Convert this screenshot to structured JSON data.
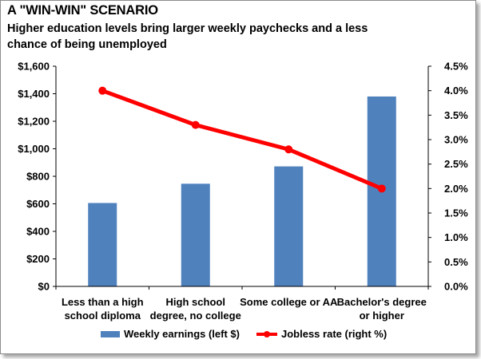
{
  "chart_data": {
    "type": "bar+line",
    "title": "A \"WIN-WIN\" SCENARIO",
    "subtitle": "Higher education levels bring larger weekly paychecks and a less chance of being unemployed",
    "categories": [
      [
        "Less than a high",
        "school diploma"
      ],
      [
        "High school",
        "degree, no college"
      ],
      [
        "Some college or AA"
      ],
      [
        "Bachelor's degree",
        "or higher"
      ]
    ],
    "series": [
      {
        "name": "Weekly earnings (left $)",
        "type": "bar",
        "axis": "left",
        "color": "#4f81bd",
        "values": [
          606,
          746,
          872,
          1380
        ]
      },
      {
        "name": "Jobless rate (right %)",
        "type": "line",
        "axis": "right",
        "color": "#ff0000",
        "values": [
          4.0,
          3.3,
          2.8,
          2.0
        ]
      }
    ],
    "y_left": {
      "min": 0,
      "max": 1600,
      "ticks": [
        "$0",
        "$200",
        "$400",
        "$600",
        "$800",
        "$1,000",
        "$1,200",
        "$1,400",
        "$1,600"
      ]
    },
    "y_right": {
      "min": 0,
      "max": 4.5,
      "ticks": [
        "0.0%",
        "0.5%",
        "1.0%",
        "1.5%",
        "2.0%",
        "2.5%",
        "3.0%",
        "3.5%",
        "4.0%",
        "4.5%"
      ]
    },
    "grid": false,
    "legend_position": "bottom"
  }
}
